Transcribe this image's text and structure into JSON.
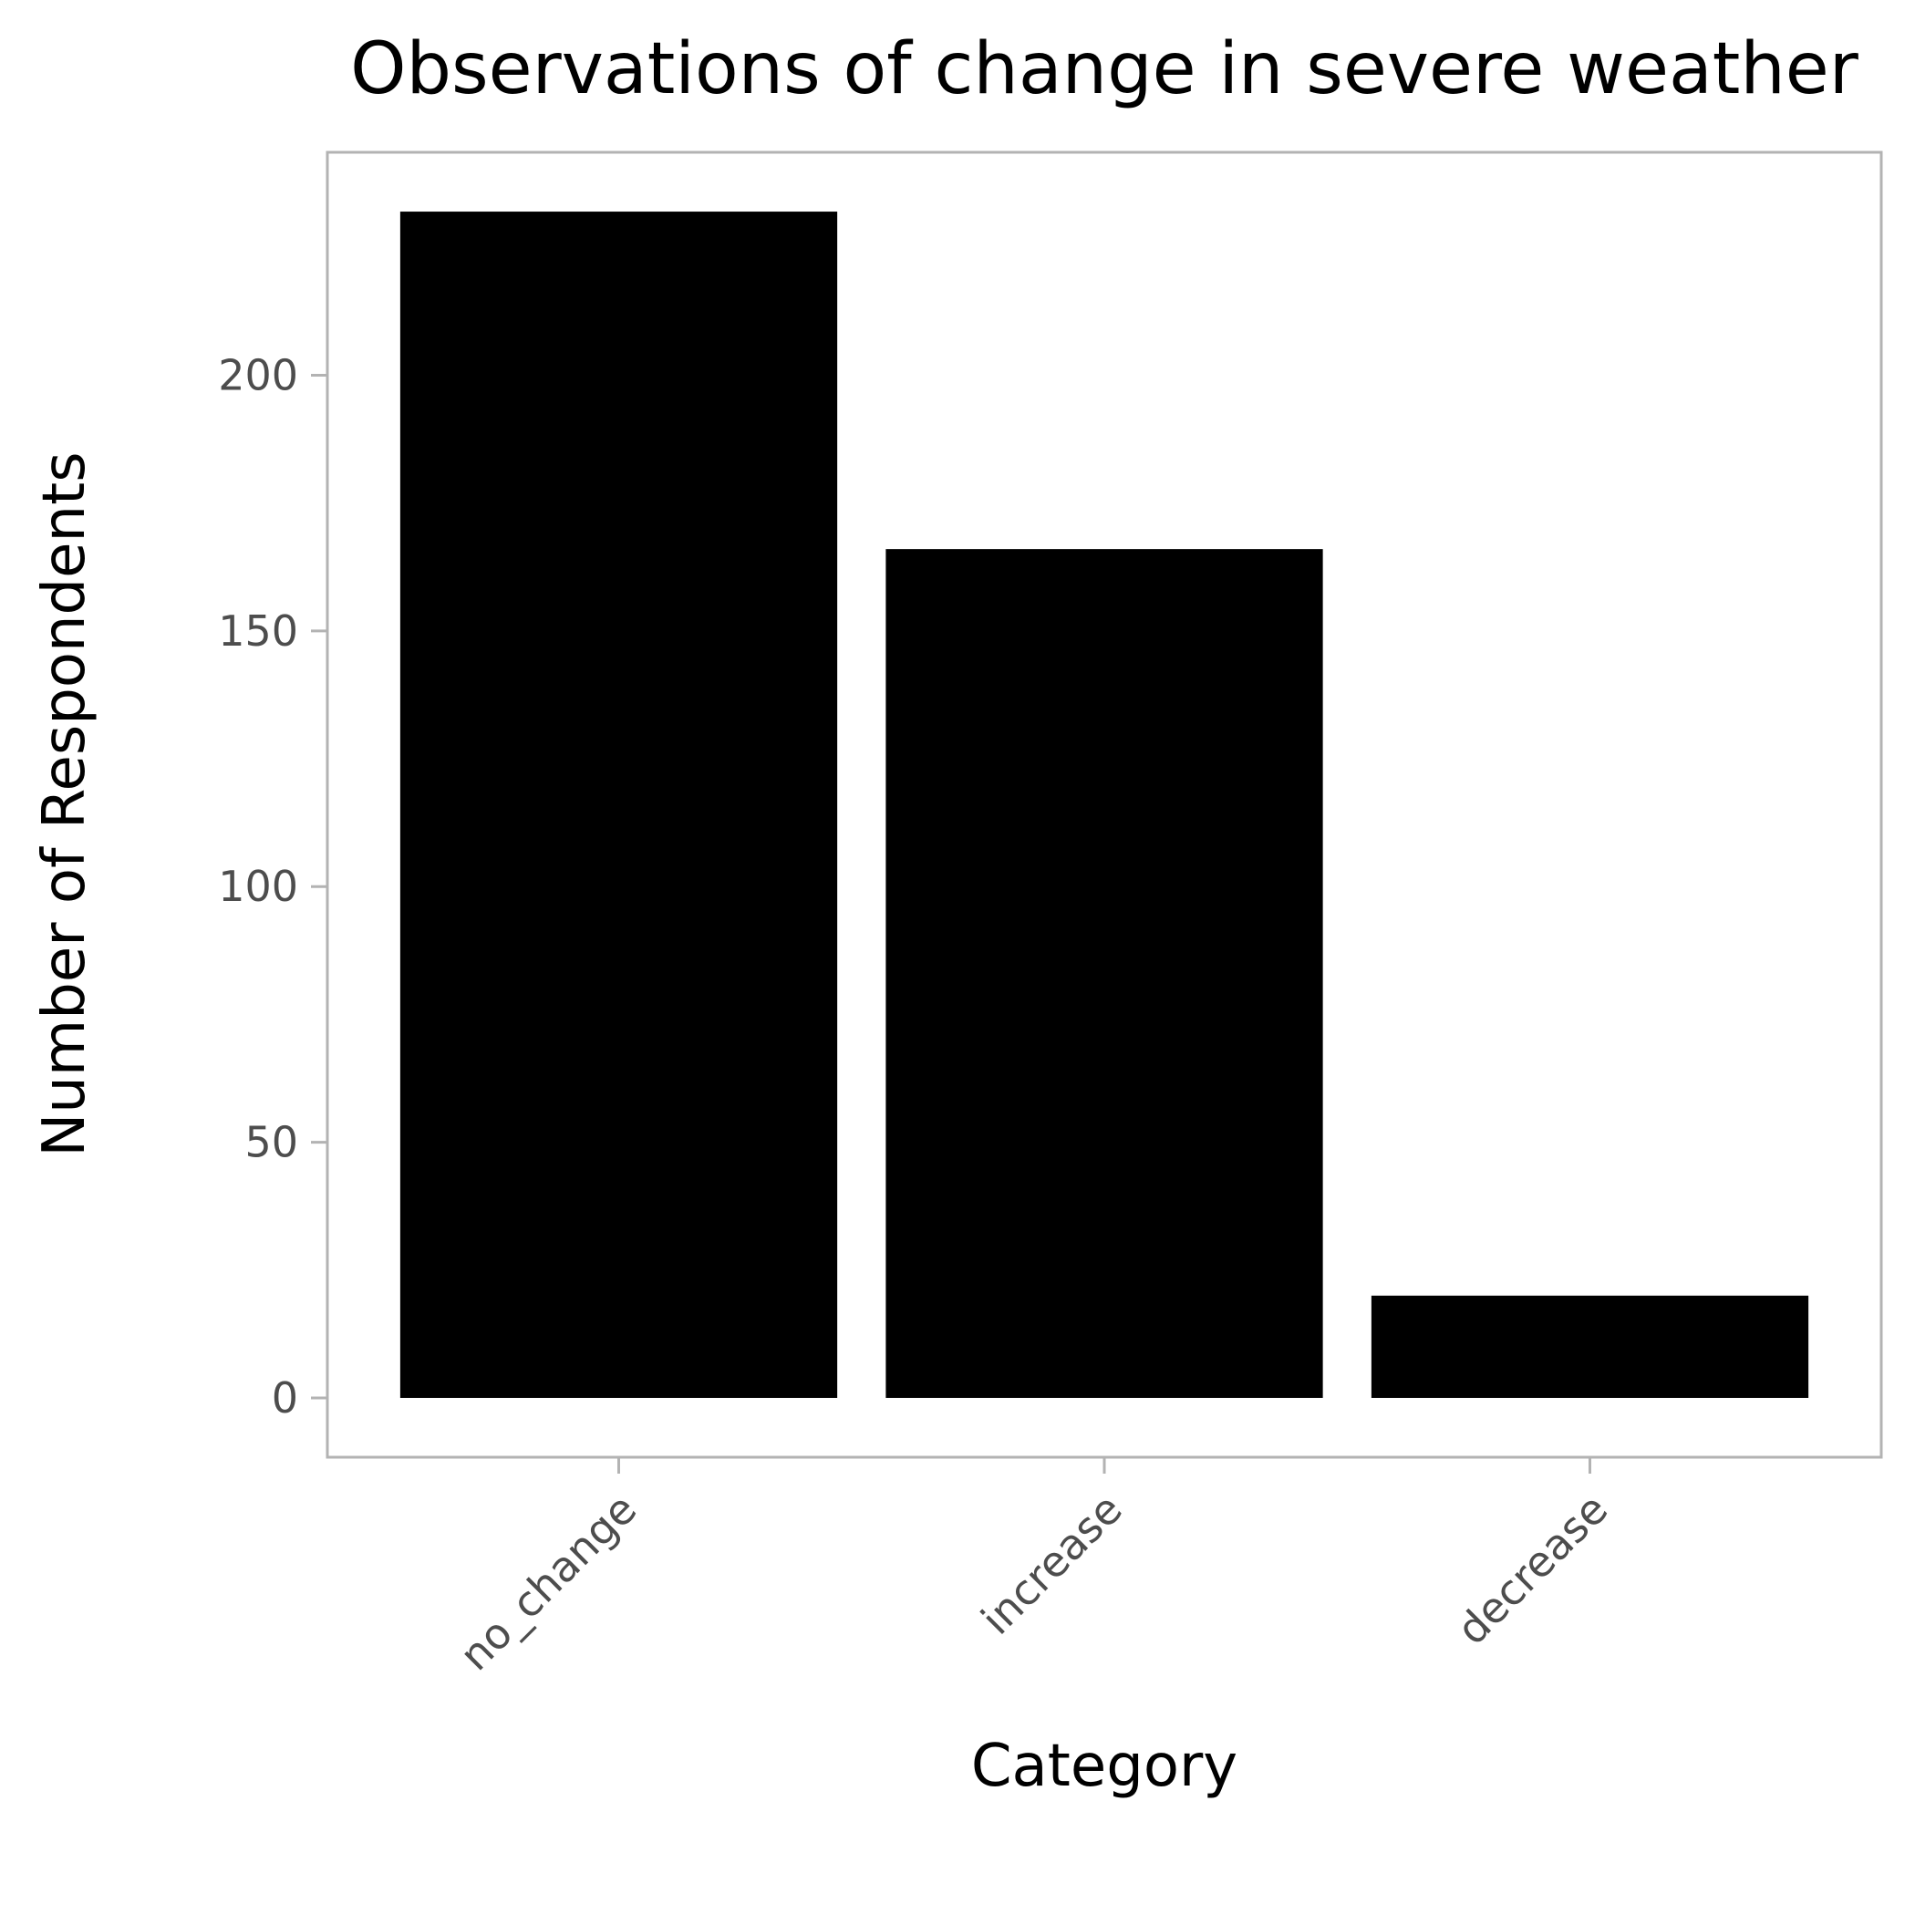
{
  "chart_data": {
    "type": "bar",
    "title": "Observations of change in severe weather",
    "xlabel": "Category",
    "ylabel": "Number of Respondents",
    "categories": [
      "no_change",
      "increase",
      "decrease"
    ],
    "values": [
      232,
      166,
      20
    ],
    "ylim": [
      -11.6,
      243.6
    ],
    "yticks": [
      0,
      50,
      100,
      150,
      200
    ],
    "grid": false,
    "legend": "none",
    "bar_color": "#000000",
    "axis_color": "#b3b3b3",
    "tick_label_color": "#4d4d4d",
    "x_tick_label_rotation_deg": 45
  }
}
